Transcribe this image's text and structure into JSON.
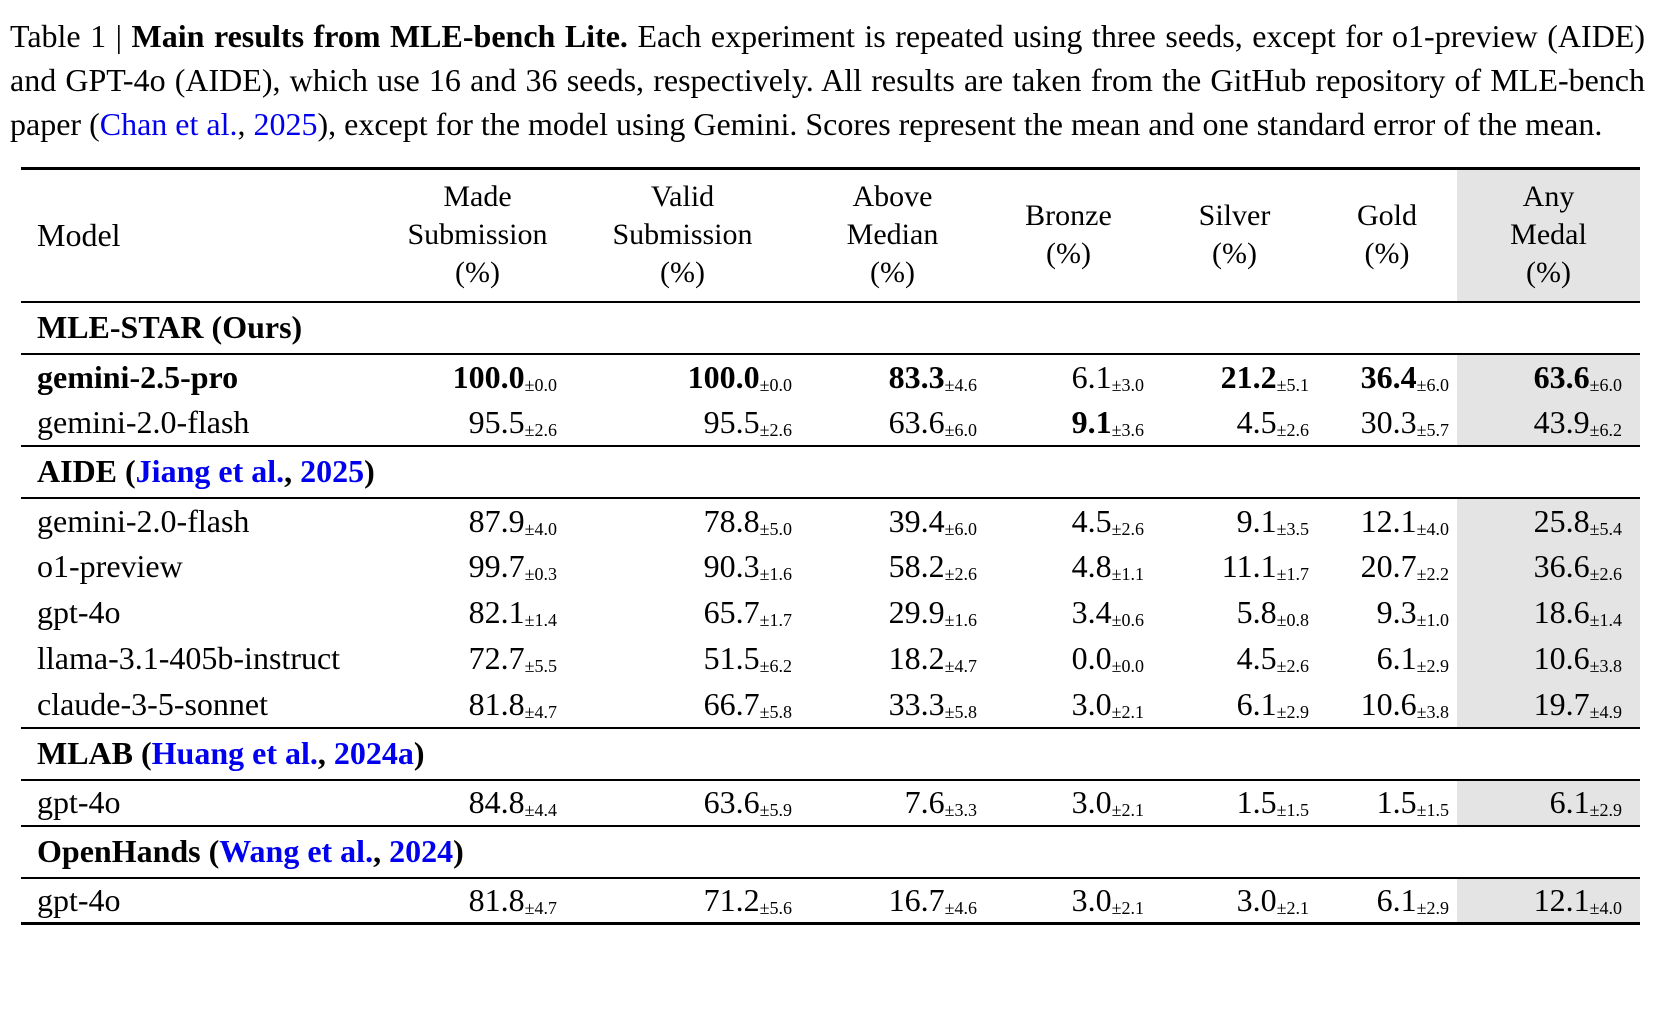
{
  "colors": {
    "link_blue": "#0000ee",
    "highlight_bg": "#e4e4e4",
    "text": "#000000"
  },
  "caption": {
    "label": "Table 1 | ",
    "title_bold": "Main results from MLE-bench Lite.",
    "body_1": " Each experiment is repeated using three seeds, except for o1-preview (AIDE) and GPT-4o (AIDE), which use 16 and 36 seeds, respectively. All results are taken from the GitHub repository of MLE-bench paper (",
    "cite_author": "Chan et al.",
    "cite_sep": ", ",
    "cite_year": "2025",
    "body_2": "), except for the model using Gemini. Scores represent the mean and one standard error of the mean."
  },
  "table": {
    "header": {
      "model": "Model",
      "cols": [
        {
          "lines": [
            "Made",
            "Submission",
            "(%)"
          ]
        },
        {
          "lines": [
            "Valid",
            "Submission",
            "(%)"
          ]
        },
        {
          "lines": [
            "Above",
            "Median",
            "(%)"
          ]
        },
        {
          "lines": [
            "Bronze",
            "(%)"
          ]
        },
        {
          "lines": [
            "Silver",
            "(%)"
          ]
        },
        {
          "lines": [
            "Gold",
            "(%)"
          ]
        },
        {
          "lines": [
            "Any",
            "Medal",
            "(%)"
          ],
          "highlight": true
        }
      ]
    },
    "sections": [
      {
        "title_parts": [
          {
            "text": "MLE-STAR (Ours)",
            "link": false
          }
        ],
        "rows": [
          {
            "model": "gemini-2.5-pro",
            "model_bold": true,
            "cells": [
              {
                "value": "100.0",
                "err": "±0.0",
                "bold": true
              },
              {
                "value": "100.0",
                "err": "±0.0",
                "bold": true
              },
              {
                "value": "83.3",
                "err": "±4.6",
                "bold": true
              },
              {
                "value": "6.1",
                "err": "±3.0",
                "bold": false
              },
              {
                "value": "21.2",
                "err": "±5.1",
                "bold": true
              },
              {
                "value": "36.4",
                "err": "±6.0",
                "bold": true
              },
              {
                "value": "63.6",
                "err": "±6.0",
                "bold": true
              }
            ]
          },
          {
            "model": "gemini-2.0-flash",
            "model_bold": false,
            "cells": [
              {
                "value": "95.5",
                "err": "±2.6",
                "bold": false
              },
              {
                "value": "95.5",
                "err": "±2.6",
                "bold": false
              },
              {
                "value": "63.6",
                "err": "±6.0",
                "bold": false
              },
              {
                "value": "9.1",
                "err": "±3.6",
                "bold": true
              },
              {
                "value": "4.5",
                "err": "±2.6",
                "bold": false
              },
              {
                "value": "30.3",
                "err": "±5.7",
                "bold": false
              },
              {
                "value": "43.9",
                "err": "±6.2",
                "bold": false
              }
            ]
          }
        ]
      },
      {
        "title_parts": [
          {
            "text": "AIDE (",
            "link": false
          },
          {
            "text": "Jiang et al.",
            "link": true
          },
          {
            "text": ", ",
            "link": false
          },
          {
            "text": "2025",
            "link": true
          },
          {
            "text": ")",
            "link": false
          }
        ],
        "rows": [
          {
            "model": "gemini-2.0-flash",
            "model_bold": false,
            "cells": [
              {
                "value": "87.9",
                "err": "±4.0",
                "bold": false
              },
              {
                "value": "78.8",
                "err": "±5.0",
                "bold": false
              },
              {
                "value": "39.4",
                "err": "±6.0",
                "bold": false
              },
              {
                "value": "4.5",
                "err": "±2.6",
                "bold": false
              },
              {
                "value": "9.1",
                "err": "±3.5",
                "bold": false
              },
              {
                "value": "12.1",
                "err": "±4.0",
                "bold": false
              },
              {
                "value": "25.8",
                "err": "±5.4",
                "bold": false
              }
            ]
          },
          {
            "model": "o1-preview",
            "model_bold": false,
            "cells": [
              {
                "value": "99.7",
                "err": "±0.3",
                "bold": false
              },
              {
                "value": "90.3",
                "err": "±1.6",
                "bold": false
              },
              {
                "value": "58.2",
                "err": "±2.6",
                "bold": false
              },
              {
                "value": "4.8",
                "err": "±1.1",
                "bold": false
              },
              {
                "value": "11.1",
                "err": "±1.7",
                "bold": false
              },
              {
                "value": "20.7",
                "err": "±2.2",
                "bold": false
              },
              {
                "value": "36.6",
                "err": "±2.6",
                "bold": false
              }
            ]
          },
          {
            "model": "gpt-4o",
            "model_bold": false,
            "cells": [
              {
                "value": "82.1",
                "err": "±1.4",
                "bold": false
              },
              {
                "value": "65.7",
                "err": "±1.7",
                "bold": false
              },
              {
                "value": "29.9",
                "err": "±1.6",
                "bold": false
              },
              {
                "value": "3.4",
                "err": "±0.6",
                "bold": false
              },
              {
                "value": "5.8",
                "err": "±0.8",
                "bold": false
              },
              {
                "value": "9.3",
                "err": "±1.0",
                "bold": false
              },
              {
                "value": "18.6",
                "err": "±1.4",
                "bold": false
              }
            ]
          },
          {
            "model": "llama-3.1-405b-instruct",
            "model_bold": false,
            "cells": [
              {
                "value": "72.7",
                "err": "±5.5",
                "bold": false
              },
              {
                "value": "51.5",
                "err": "±6.2",
                "bold": false
              },
              {
                "value": "18.2",
                "err": "±4.7",
                "bold": false
              },
              {
                "value": "0.0",
                "err": "±0.0",
                "bold": false
              },
              {
                "value": "4.5",
                "err": "±2.6",
                "bold": false
              },
              {
                "value": "6.1",
                "err": "±2.9",
                "bold": false
              },
              {
                "value": "10.6",
                "err": "±3.8",
                "bold": false
              }
            ]
          },
          {
            "model": "claude-3-5-sonnet",
            "model_bold": false,
            "cells": [
              {
                "value": "81.8",
                "err": "±4.7",
                "bold": false
              },
              {
                "value": "66.7",
                "err": "±5.8",
                "bold": false
              },
              {
                "value": "33.3",
                "err": "±5.8",
                "bold": false
              },
              {
                "value": "3.0",
                "err": "±2.1",
                "bold": false
              },
              {
                "value": "6.1",
                "err": "±2.9",
                "bold": false
              },
              {
                "value": "10.6",
                "err": "±3.8",
                "bold": false
              },
              {
                "value": "19.7",
                "err": "±4.9",
                "bold": false
              }
            ]
          }
        ]
      },
      {
        "title_parts": [
          {
            "text": "MLAB (",
            "link": false
          },
          {
            "text": "Huang et al.",
            "link": true
          },
          {
            "text": ", ",
            "link": false
          },
          {
            "text": "2024a",
            "link": true
          },
          {
            "text": ")",
            "link": false
          }
        ],
        "rows": [
          {
            "model": "gpt-4o",
            "model_bold": false,
            "cells": [
              {
                "value": "84.8",
                "err": "±4.4",
                "bold": false
              },
              {
                "value": "63.6",
                "err": "±5.9",
                "bold": false
              },
              {
                "value": "7.6",
                "err": "±3.3",
                "bold": false
              },
              {
                "value": "3.0",
                "err": "±2.1",
                "bold": false
              },
              {
                "value": "1.5",
                "err": "±1.5",
                "bold": false
              },
              {
                "value": "1.5",
                "err": "±1.5",
                "bold": false
              },
              {
                "value": "6.1",
                "err": "±2.9",
                "bold": false
              }
            ]
          }
        ]
      },
      {
        "title_parts": [
          {
            "text": "OpenHands (",
            "link": false
          },
          {
            "text": "Wang et al.",
            "link": true
          },
          {
            "text": ", ",
            "link": false
          },
          {
            "text": "2024",
            "link": true
          },
          {
            "text": ")",
            "link": false
          }
        ],
        "rows": [
          {
            "model": "gpt-4o",
            "model_bold": false,
            "cells": [
              {
                "value": "81.8",
                "err": "±4.7",
                "bold": false
              },
              {
                "value": "71.2",
                "err": "±5.6",
                "bold": false
              },
              {
                "value": "16.7",
                "err": "±4.6",
                "bold": false
              },
              {
                "value": "3.0",
                "err": "±2.1",
                "bold": false
              },
              {
                "value": "3.0",
                "err": "±2.1",
                "bold": false
              },
              {
                "value": "6.1",
                "err": "±2.9",
                "bold": false
              },
              {
                "value": "12.1",
                "err": "±4.0",
                "bold": false
              }
            ]
          }
        ]
      }
    ]
  }
}
